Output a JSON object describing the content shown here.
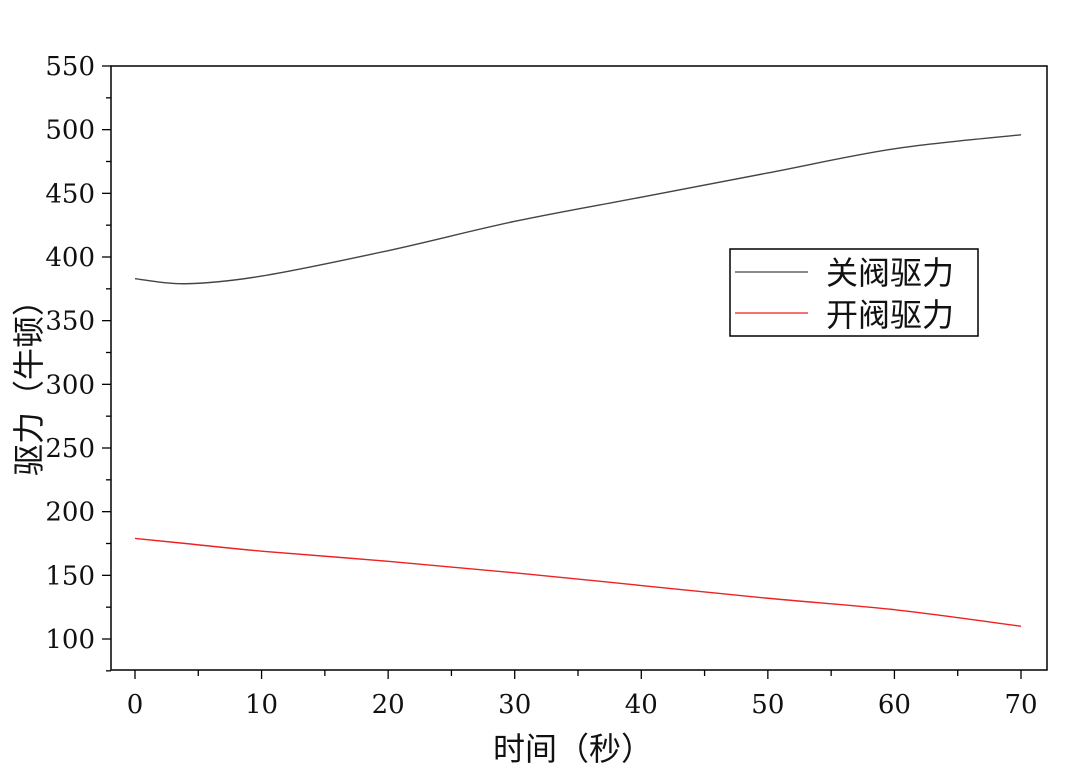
{
  "chart_data": {
    "type": "line",
    "title": "",
    "xlabel": "时间（秒）",
    "ylabel": "驱力（牛顿）",
    "xlim": [
      -2,
      72
    ],
    "ylim": [
      75,
      550
    ],
    "xticks": [
      0,
      10,
      20,
      30,
      40,
      50,
      60,
      70
    ],
    "yticks": [
      100,
      150,
      200,
      250,
      300,
      350,
      400,
      450,
      500,
      550
    ],
    "grid": false,
    "legend_position": "upper right (inset)",
    "x": [
      0,
      4,
      10,
      20,
      30,
      40,
      50,
      60,
      70
    ],
    "series": [
      {
        "name": "关阀驱力",
        "color": "#444444",
        "values": [
          383,
          379,
          385,
          405,
          428,
          447,
          466,
          485,
          496
        ]
      },
      {
        "name": "开阀驱力",
        "color": "#ee2222",
        "values": [
          179,
          175,
          169,
          161,
          152,
          142,
          132,
          123,
          110
        ]
      }
    ]
  }
}
